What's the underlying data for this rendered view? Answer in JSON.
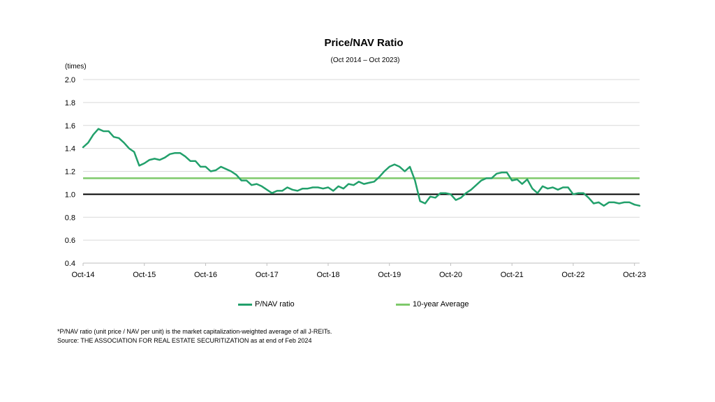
{
  "chart_data": {
    "type": "line",
    "title": "Price/NAV  Ratio",
    "subtitle": "(Oct 2014 – Oct 2023)",
    "ylabel": "(times)",
    "ylim": [
      0.4,
      2.0
    ],
    "yticks": [
      0.4,
      0.6,
      0.8,
      1.0,
      1.2,
      1.4,
      1.6,
      1.8,
      2.0
    ],
    "ytick_labels": [
      "0.4",
      "0.6",
      "0.8",
      "1.0",
      "1.2",
      "1.4",
      "1.6",
      "1.8",
      "2.0"
    ],
    "xtick_labels": [
      "Oct-14",
      "Oct-15",
      "Oct-16",
      "Oct-17",
      "Oct-18",
      "Oct-19",
      "Oct-20",
      "Oct-21",
      "Oct-22",
      "Oct-23"
    ],
    "grid": true,
    "legend_position": "bottom",
    "reference_line": {
      "value": 1.0,
      "color": "#000000"
    },
    "series": [
      {
        "name": "P/NAV ratio",
        "color": "#22a06b",
        "values": [
          1.41,
          1.45,
          1.52,
          1.57,
          1.55,
          1.55,
          1.5,
          1.49,
          1.45,
          1.4,
          1.37,
          1.25,
          1.27,
          1.3,
          1.31,
          1.3,
          1.32,
          1.35,
          1.36,
          1.36,
          1.33,
          1.29,
          1.29,
          1.24,
          1.24,
          1.2,
          1.21,
          1.24,
          1.22,
          1.2,
          1.17,
          1.12,
          1.12,
          1.08,
          1.09,
          1.07,
          1.04,
          1.01,
          1.03,
          1.03,
          1.06,
          1.04,
          1.03,
          1.05,
          1.05,
          1.06,
          1.06,
          1.05,
          1.06,
          1.03,
          1.07,
          1.05,
          1.09,
          1.08,
          1.11,
          1.09,
          1.1,
          1.11,
          1.15,
          1.2,
          1.24,
          1.26,
          1.24,
          1.2,
          1.24,
          1.12,
          0.94,
          0.92,
          0.98,
          0.97,
          1.01,
          1.01,
          1.0,
          0.95,
          0.97,
          1.01,
          1.04,
          1.08,
          1.12,
          1.14,
          1.14,
          1.18,
          1.19,
          1.19,
          1.12,
          1.13,
          1.09,
          1.13,
          1.05,
          1.01,
          1.07,
          1.05,
          1.06,
          1.04,
          1.06,
          1.06,
          1.0,
          1.01,
          1.01,
          0.97,
          0.92,
          0.93,
          0.9,
          0.93,
          0.93,
          0.92,
          0.93,
          0.93,
          0.91,
          0.9
        ]
      },
      {
        "name": "10-year Average",
        "color": "#7ec96a",
        "values": [
          1.14,
          1.14
        ]
      }
    ]
  },
  "footnotes": [
    "*P/NAV  ratio (unit price / NAV  per unit) is the market capitalization-weighted average of all J-REITs.",
    "Source: THE ASSOCIATION  FOR REAL ESTATE SECURITIZATION  as at end of Feb 2024"
  ]
}
